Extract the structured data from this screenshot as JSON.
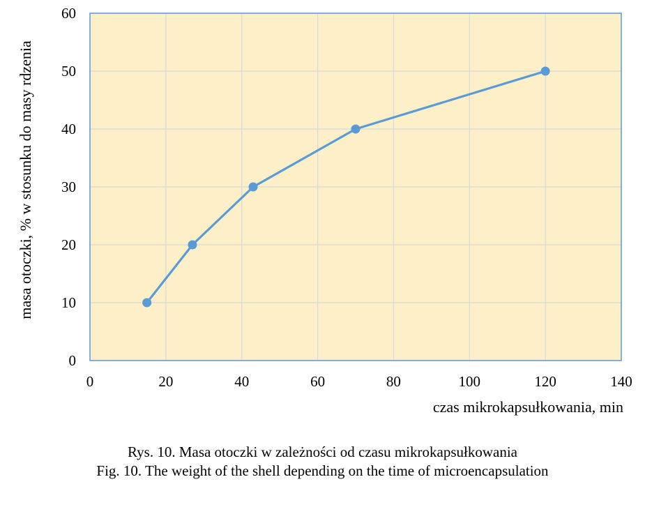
{
  "chart_data": {
    "type": "line",
    "x": [
      15,
      27,
      43,
      70,
      120
    ],
    "series": [
      {
        "values": [
          10,
          20,
          30,
          40,
          50
        ]
      }
    ],
    "xlabel": "czas mikrokapsułkowania, min",
    "ylabel": "masa otoczki, % w stosunku do masy rdzenia",
    "xlim": [
      0,
      140
    ],
    "ylim": [
      0,
      60
    ],
    "xticks": [
      "0",
      "20",
      "40",
      "60",
      "80",
      "100",
      "120",
      "140"
    ],
    "yticks": [
      "0",
      "10",
      "20",
      "30",
      "40",
      "50",
      "60"
    ],
    "grid": true,
    "colors": {
      "line": "#5b9bd5",
      "plot_bg": "#fdf0c8",
      "grid": "#d9d9d9",
      "frame": "#5b9bd5"
    }
  },
  "caption": {
    "pl": "Rys. 10. Masa otoczki w zależności od czasu mikrokapsułkowania",
    "en": "Fig. 10. The weight of the shell depending on the time of microencapsulation"
  }
}
